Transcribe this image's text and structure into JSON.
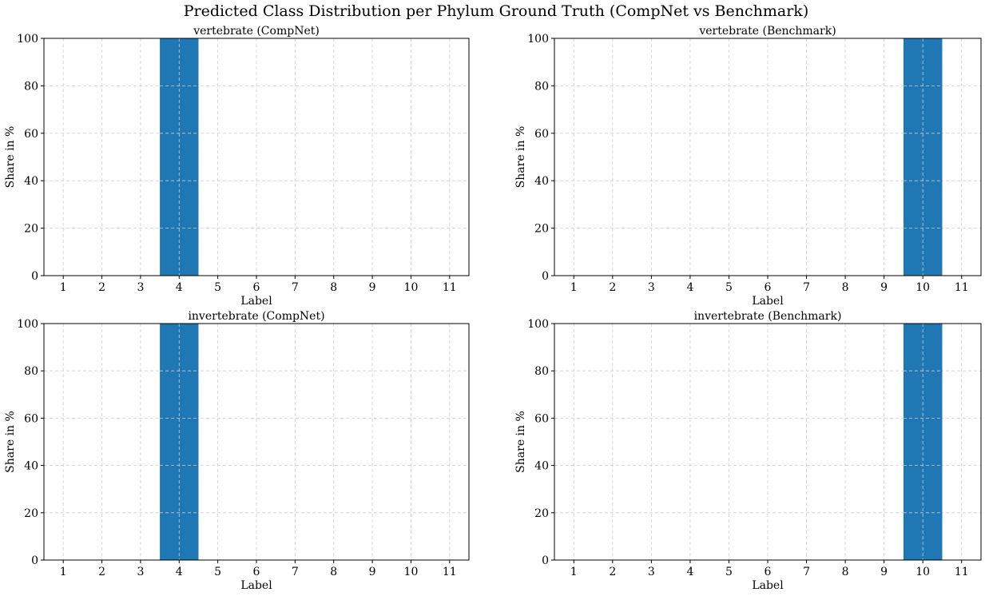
{
  "figure_title": "Predicted Class Distribution per Phylum Ground Truth (CompNet vs Benchmark)",
  "bar_color": "#1f77b4",
  "chart_data": [
    {
      "type": "bar",
      "title": "vertebrate (CompNet)",
      "xlabel": "Label",
      "ylabel": "Share in %",
      "categories": [
        "1",
        "2",
        "3",
        "4",
        "5",
        "6",
        "7",
        "8",
        "9",
        "10",
        "11"
      ],
      "values": [
        0,
        0,
        0,
        100,
        0,
        0,
        0,
        0,
        0,
        0,
        0
      ],
      "ylim": [
        0,
        100
      ],
      "yticks": [
        0,
        20,
        40,
        60,
        80,
        100
      ],
      "grid": true
    },
    {
      "type": "bar",
      "title": "vertebrate (Benchmark)",
      "xlabel": "Label",
      "ylabel": "Share in %",
      "categories": [
        "1",
        "2",
        "3",
        "4",
        "5",
        "6",
        "7",
        "8",
        "9",
        "10",
        "11"
      ],
      "values": [
        0,
        0,
        0,
        0,
        0,
        0,
        0,
        0,
        0,
        100,
        0
      ],
      "ylim": [
        0,
        100
      ],
      "yticks": [
        0,
        20,
        40,
        60,
        80,
        100
      ],
      "grid": true
    },
    {
      "type": "bar",
      "title": "invertebrate (CompNet)",
      "xlabel": "Label",
      "ylabel": "Share in %",
      "categories": [
        "1",
        "2",
        "3",
        "4",
        "5",
        "6",
        "7",
        "8",
        "9",
        "10",
        "11"
      ],
      "values": [
        0,
        0,
        0,
        100,
        0,
        0,
        0,
        0,
        0,
        0,
        0
      ],
      "ylim": [
        0,
        100
      ],
      "yticks": [
        0,
        20,
        40,
        60,
        80,
        100
      ],
      "grid": true
    },
    {
      "type": "bar",
      "title": "invertebrate (Benchmark)",
      "xlabel": "Label",
      "ylabel": "Share in %",
      "categories": [
        "1",
        "2",
        "3",
        "4",
        "5",
        "6",
        "7",
        "8",
        "9",
        "10",
        "11"
      ],
      "values": [
        0,
        0,
        0,
        0,
        0,
        0,
        0,
        0,
        0,
        100,
        0
      ],
      "ylim": [
        0,
        100
      ],
      "yticks": [
        0,
        20,
        40,
        60,
        80,
        100
      ],
      "grid": true
    }
  ]
}
